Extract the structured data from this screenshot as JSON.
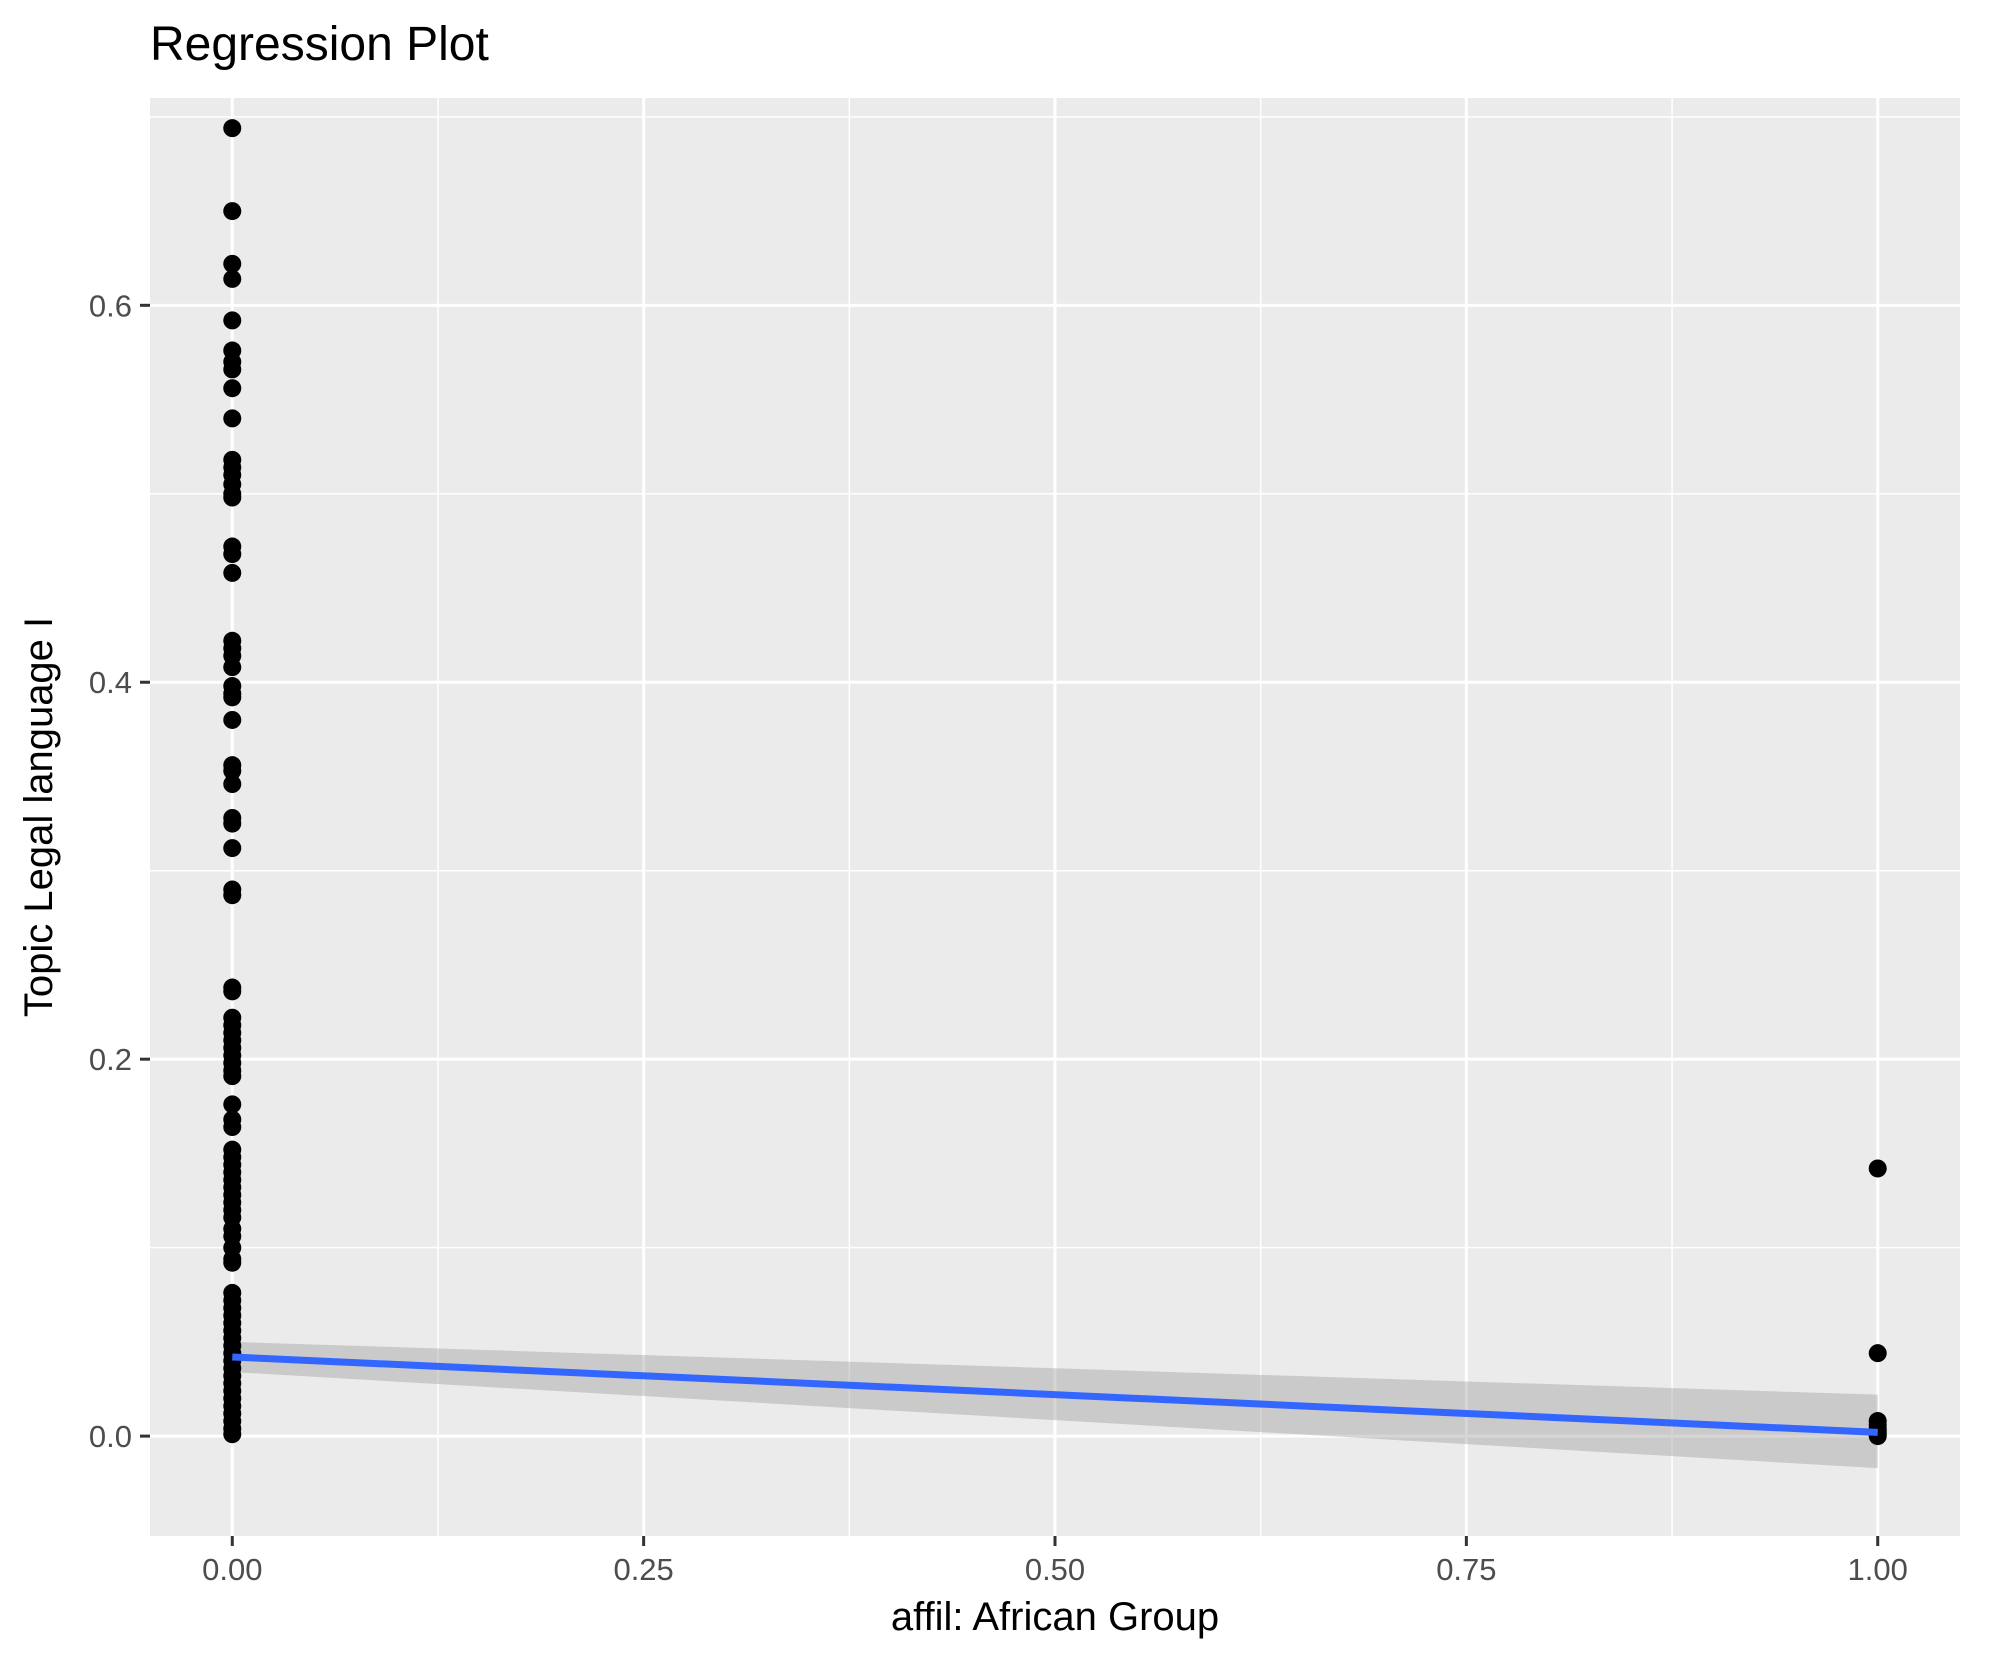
{
  "chart_data": {
    "type": "scatter",
    "title": "Regression Plot",
    "xlabel": "affil: African Group",
    "ylabel": "Topic Legal language I",
    "xlim": [
      -0.05,
      1.05
    ],
    "ylim": [
      -0.053,
      0.71
    ],
    "x_ticks": [
      0.0,
      0.25,
      0.5,
      0.75,
      1.0
    ],
    "x_tick_labels": [
      "0.00",
      "0.25",
      "0.50",
      "0.75",
      "1.00"
    ],
    "y_ticks": [
      0.0,
      0.2,
      0.4,
      0.6
    ],
    "y_tick_labels": [
      "0.0",
      "0.2",
      "0.4",
      "0.6"
    ],
    "grid": true,
    "colors": {
      "panel": "#ebebeb",
      "points": "#000000",
      "fit_line": "#3366ff",
      "ribbon": "#999999"
    },
    "points": {
      "x0_values": [
        0.694,
        0.65,
        0.622,
        0.614,
        0.592,
        0.576,
        0.57,
        0.566,
        0.556,
        0.54,
        0.518,
        0.514,
        0.51,
        0.505,
        0.5,
        0.498,
        0.472,
        0.468,
        0.458,
        0.422,
        0.418,
        0.414,
        0.408,
        0.398,
        0.394,
        0.392,
        0.38,
        0.356,
        0.353,
        0.346,
        0.328,
        0.325,
        0.312,
        0.29,
        0.287,
        0.238,
        0.236,
        0.222,
        0.218,
        0.214,
        0.21,
        0.206,
        0.202,
        0.198,
        0.194,
        0.191,
        0.176,
        0.168,
        0.164,
        0.152,
        0.148,
        0.144,
        0.14,
        0.136,
        0.132,
        0.128,
        0.124,
        0.12,
        0.116,
        0.11,
        0.106,
        0.1,
        0.094,
        0.092,
        0.076,
        0.072,
        0.068,
        0.064,
        0.06,
        0.056,
        0.052,
        0.048,
        0.044,
        0.04,
        0.036,
        0.032,
        0.028,
        0.024,
        0.02,
        0.016,
        0.012,
        0.008,
        0.004,
        0.001
      ],
      "x1_values": [
        0.142,
        0.044,
        0.008,
        0.006,
        0.004,
        0.003,
        0.002,
        0.001,
        0.0
      ]
    },
    "fit": {
      "x": [
        0.0,
        1.0
      ],
      "y": [
        0.042,
        0.002
      ],
      "ci_upper": [
        0.05,
        0.022
      ],
      "ci_lower": [
        0.034,
        -0.017
      ]
    }
  }
}
